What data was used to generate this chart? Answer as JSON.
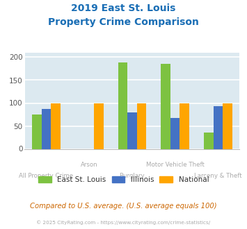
{
  "title_line1": "2019 East St. Louis",
  "title_line2": "Property Crime Comparison",
  "categories": [
    "All Property Crime",
    "Arson",
    "Burglary",
    "Motor Vehicle Theft",
    "Larceny & Theft"
  ],
  "series": {
    "East St. Louis": [
      75,
      0,
      188,
      185,
      36
    ],
    "Illinois": [
      87,
      0,
      79,
      68,
      93
    ],
    "National": [
      100,
      100,
      100,
      100,
      100
    ]
  },
  "colors": {
    "East St. Louis": "#7dc241",
    "Illinois": "#4472c4",
    "National": "#ffa500"
  },
  "ylim": [
    0,
    210
  ],
  "yticks": [
    0,
    50,
    100,
    150,
    200
  ],
  "background_color": "#dce9f0",
  "grid_color": "#ffffff",
  "title_color": "#1a6eb5",
  "subtitle_note": "Compared to U.S. average. (U.S. average equals 100)",
  "copyright": "© 2025 CityRating.com - https://www.cityrating.com/crime-statistics/",
  "subtitle_color": "#cc6600",
  "copyright_color": "#aaaaaa",
  "bar_width": 0.22
}
